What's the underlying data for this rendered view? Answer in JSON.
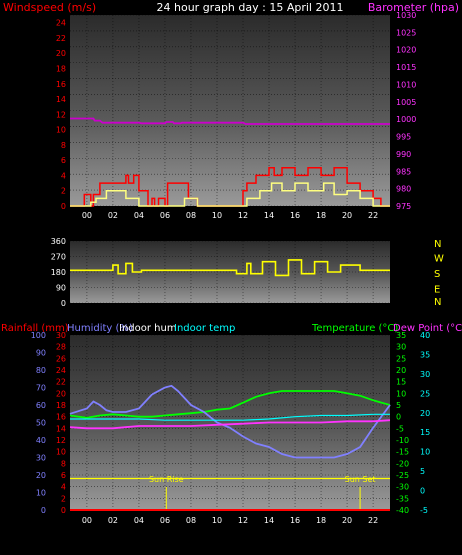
{
  "chart_data": [
    {
      "type": "line",
      "title": "24 hour graph day : 15 April 2011",
      "y_left_label": "Windspeed (m/s)",
      "y_right_label": "Barometer (hpa)",
      "y_left_ticks": [
        "0",
        "2",
        "4",
        "6",
        "8",
        "10",
        "12",
        "14",
        "16",
        "18",
        "20",
        "22",
        "24"
      ],
      "y_left_range": [
        0,
        25
      ],
      "y_right_ticks": [
        "975",
        "980",
        "985",
        "990",
        "995",
        "1000",
        "1005",
        "1010",
        "1015",
        "1020",
        "1025",
        "1030"
      ],
      "y_right_range": [
        975,
        1030
      ],
      "x_ticks": [
        "00",
        "02",
        "04",
        "06",
        "08",
        "10",
        "12",
        "14",
        "16",
        "18",
        "20",
        "22"
      ],
      "x_hour_range": [
        -1.3,
        23.3
      ],
      "colors": {
        "wind_gust": "#ff0000",
        "wind_avg": "#ffff80",
        "barometer": "#cc00cc"
      },
      "series": [
        {
          "key": "barometer",
          "x": [
            -1.3,
            0.5,
            0.6,
            1.0,
            1.2,
            4.0,
            4.2,
            6.0,
            6.1,
            6.6,
            6.7,
            7.2,
            7.3,
            12.0,
            12.2,
            12.6,
            12.8,
            23.3
          ],
          "values": [
            1000.2,
            1000.2,
            999.6,
            999.6,
            999.0,
            999.0,
            998.8,
            998.8,
            999.2,
            999.2,
            998.8,
            998.8,
            999.0,
            999.0,
            998.6,
            998.6,
            998.6,
            998.6
          ]
        },
        {
          "key": "wind_gust",
          "x": [
            -1.3,
            -0.2,
            -0.2,
            0.3,
            0.3,
            0.5,
            0.5,
            1.0,
            1.0,
            3.0,
            3.0,
            3.2,
            3.2,
            3.6,
            3.6,
            4.0,
            4.0,
            4.7,
            4.7,
            5.0,
            5.0,
            5.2,
            5.2,
            5.5,
            5.5,
            6.0,
            6.0,
            6.2,
            6.2,
            7.8,
            7.8,
            8.5,
            8.5,
            9.0,
            9.0,
            12.0,
            12.0,
            12.3,
            12.3,
            13.0,
            13.0,
            14.0,
            14.0,
            14.4,
            14.4,
            15.0,
            15.0,
            16.0,
            16.0,
            17.0,
            17.0,
            18.0,
            18.0,
            19.0,
            19.0,
            20.0,
            20.0,
            21.0,
            21.0,
            22.0,
            22.0,
            22.6,
            22.6,
            23.3
          ],
          "values": [
            0,
            0,
            1.5,
            1.5,
            0,
            0,
            1.5,
            1.5,
            3,
            3,
            4,
            4,
            3,
            3,
            4,
            4,
            2,
            2,
            0,
            0,
            1,
            1,
            0,
            0,
            1,
            1,
            0,
            0,
            3,
            3,
            1,
            1,
            0,
            0,
            0,
            0,
            2,
            2,
            3,
            3,
            4,
            4,
            5,
            5,
            4,
            4,
            5,
            5,
            4,
            4,
            5,
            5,
            4,
            4,
            5,
            5,
            3,
            3,
            2,
            2,
            1,
            1,
            0,
            0
          ]
        },
        {
          "key": "wind_avg",
          "x": [
            -1.3,
            0.3,
            0.3,
            0.7,
            0.7,
            1.5,
            1.5,
            3.0,
            3.0,
            4.0,
            4.0,
            7.5,
            7.5,
            8.5,
            8.5,
            12.3,
            12.3,
            13.3,
            13.3,
            14.2,
            14.2,
            15.0,
            15.0,
            16.0,
            16.0,
            17.0,
            17.0,
            18.2,
            18.2,
            19.0,
            19.0,
            20.0,
            20.0,
            21.0,
            21.0,
            22.0,
            22.0,
            23.3
          ],
          "values": [
            0,
            0,
            0.5,
            0.5,
            1,
            1,
            2,
            2,
            1,
            1,
            0,
            0,
            1,
            1,
            0,
            0,
            1,
            1,
            2,
            2,
            3,
            3,
            2,
            2,
            3,
            3,
            2,
            2,
            3,
            3,
            1.5,
            1.5,
            2,
            2,
            1,
            1,
            0,
            0
          ]
        }
      ]
    },
    {
      "type": "scatter",
      "y_right_labels": [
        "N",
        "W",
        "S",
        "E",
        "N"
      ],
      "y_left_ticks": [
        "0",
        "90",
        "180",
        "270",
        "360"
      ],
      "y_range": [
        0,
        360
      ],
      "x_hour_range": [
        -1.3,
        23.3
      ],
      "colors": {
        "direction": "#ffff00"
      },
      "series": [
        {
          "key": "direction",
          "x": [
            -1.3,
            2.0,
            2.0,
            2.4,
            2.4,
            3.0,
            3.0,
            3.5,
            3.5,
            4.2,
            4.2,
            11.5,
            11.5,
            12.3,
            12.3,
            12.6,
            12.6,
            13.5,
            13.5,
            14.5,
            14.5,
            15.5,
            15.5,
            16.5,
            16.5,
            17.5,
            17.5,
            18.5,
            18.5,
            19.5,
            19.5,
            21.0,
            21.0,
            23.3
          ],
          "values": [
            190,
            190,
            220,
            220,
            170,
            170,
            230,
            230,
            180,
            180,
            190,
            190,
            170,
            170,
            230,
            230,
            170,
            170,
            240,
            240,
            160,
            160,
            250,
            250,
            170,
            170,
            240,
            240,
            180,
            180,
            220,
            220,
            190,
            190
          ]
        }
      ]
    },
    {
      "type": "line",
      "y_labels": [
        "Rainfall (mm)",
        "Humidity (%)",
        "Indoor hum",
        "Indoor temp",
        "Temperature (°C)",
        "Dew Point (°C)"
      ],
      "humidity_ticks": [
        "0",
        "10",
        "20",
        "30",
        "40",
        "50",
        "60",
        "70",
        "80",
        "90",
        "100"
      ],
      "humidity_range": [
        0,
        100
      ],
      "rain_ticks": [
        "0",
        "2",
        "4",
        "6",
        "8",
        "10",
        "12",
        "14",
        "16",
        "18",
        "20",
        "22",
        "24",
        "26",
        "28",
        "30"
      ],
      "rain_range": [
        0,
        30
      ],
      "temp_ticks": [
        "-40",
        "-35",
        "-30",
        "-25",
        "-20",
        "-15",
        "-10",
        "-5",
        "0",
        "5",
        "10",
        "15",
        "20",
        "25",
        "30",
        "35"
      ],
      "temp_range": [
        -40,
        35
      ],
      "dew_ticks": [
        "-5",
        "0",
        "5",
        "10",
        "15",
        "20",
        "25",
        "30",
        "35",
        "40"
      ],
      "dew_range": [
        -5,
        40
      ],
      "x_ticks": [
        "00",
        "02",
        "04",
        "06",
        "08",
        "10",
        "12",
        "14",
        "16",
        "18",
        "20",
        "22"
      ],
      "x_hour_range": [
        -1.3,
        23.3
      ],
      "annotations": [
        {
          "label": "Sun Rise",
          "hour": 6.1
        },
        {
          "label": "Sun Set",
          "hour": 21.0
        }
      ],
      "colors": {
        "humidity": "#8080ff",
        "indoor_hum": "#ffff00",
        "indoor_temp": "#00ffff",
        "temperature": "#00ff00",
        "dew_point": "#ff33ff",
        "rain": "#ff0000"
      },
      "series": [
        {
          "key": "temperature",
          "x": [
            -1.3,
            0,
            1,
            2,
            3,
            4,
            5,
            6,
            7,
            8,
            9,
            10,
            11,
            12,
            13,
            14,
            15,
            16,
            17,
            18,
            19,
            20,
            21,
            22,
            23.3
          ],
          "values": [
            0.5,
            -0.5,
            0.5,
            1,
            0.5,
            0,
            0,
            0.5,
            1,
            1.5,
            2,
            3,
            3.5,
            6,
            8.5,
            10,
            11,
            11,
            11,
            11,
            11,
            10,
            9,
            7,
            5
          ]
        },
        {
          "key": "humidity",
          "x": [
            -1.3,
            0,
            0.5,
            1,
            1.5,
            2,
            3,
            4,
            5,
            6,
            6.5,
            7,
            7.5,
            8,
            9,
            10,
            11,
            12,
            13,
            14,
            15,
            16,
            17,
            18,
            19,
            20,
            21,
            22,
            23.3
          ],
          "values": [
            55,
            58,
            62,
            60,
            57,
            56,
            56,
            58,
            66,
            70,
            71,
            68,
            64,
            60,
            56,
            50,
            47,
            42,
            38,
            36,
            32,
            30,
            30,
            30,
            30,
            32,
            36,
            47,
            60
          ]
        },
        {
          "key": "dew_point",
          "x": [
            -1.3,
            0,
            2,
            4,
            6,
            8,
            10,
            12,
            14,
            16,
            18,
            20,
            22,
            23.3
          ],
          "values": [
            -4.5,
            -5,
            -5,
            -4,
            -4,
            -4,
            -3.5,
            -3,
            -2.5,
            -2.5,
            -2.5,
            -2,
            -2,
            -1.5
          ]
        },
        {
          "key": "indoor_temp",
          "x": [
            -1.3,
            0,
            2,
            4,
            6,
            8,
            10,
            12,
            14,
            16,
            18,
            20,
            22,
            23.3
          ],
          "values": [
            -1,
            -1,
            -1,
            -1,
            -1.5,
            -1.5,
            -1.5,
            -1.5,
            -1,
            0,
            0.5,
            0.5,
            1,
            1
          ]
        },
        {
          "key": "indoor_hum",
          "x": [
            -1.3,
            23.3
          ],
          "values": [
            18,
            18
          ]
        },
        {
          "key": "rain",
          "x": [
            -1.3,
            23.3
          ],
          "values": [
            0,
            0
          ]
        }
      ]
    }
  ]
}
